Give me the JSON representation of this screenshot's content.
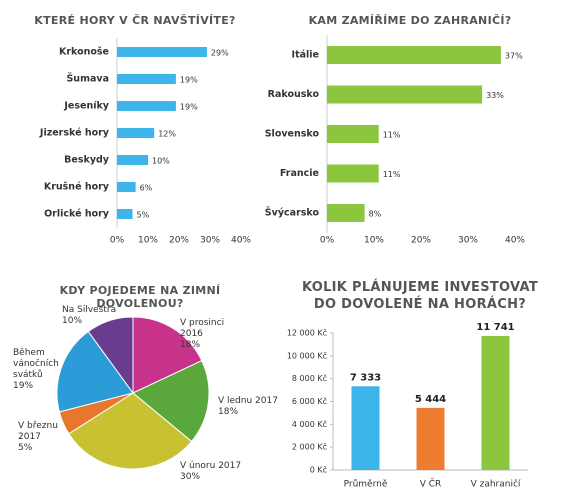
{
  "chart_data": [
    {
      "type": "hbar",
      "title": "KTERÉ HORY V ČR NAVŠTÍVÍTE?",
      "categories": [
        "Krkonoše",
        "Šumava",
        "Jeseníky",
        "Jizerské hory",
        "Beskydy",
        "Krušné hory",
        "Orlické hory"
      ],
      "values": [
        29,
        19,
        19,
        12,
        10,
        6,
        5
      ],
      "value_labels": [
        "29%",
        "19%",
        "19%",
        "12%",
        "10%",
        "6%",
        "5%"
      ],
      "color": "#3cb4ec",
      "xlim": [
        0,
        40
      ],
      "xticks": [
        {
          "value": 0,
          "label": "0%"
        },
        {
          "value": 10,
          "label": "10%"
        },
        {
          "value": 20,
          "label": "20%"
        },
        {
          "value": 30,
          "label": "30%"
        },
        {
          "value": 40,
          "label": "40%"
        }
      ]
    },
    {
      "type": "hbar",
      "title": "KAM ZAMÍŘÍME DO ZAHRANIČÍ?",
      "categories": [
        "Itálie",
        "Rakousko",
        "Slovensko",
        "Francie",
        "Švýcarsko"
      ],
      "values": [
        37,
        33,
        11,
        11,
        8
      ],
      "value_labels": [
        "37%",
        "33%",
        "11%",
        "11%",
        "8%"
      ],
      "color": "#8cc63f",
      "xlim": [
        0,
        40
      ],
      "xticks": [
        {
          "value": 0,
          "label": "0%"
        },
        {
          "value": 10,
          "label": "10%"
        },
        {
          "value": 20,
          "label": "20%"
        },
        {
          "value": 30,
          "label": "30%"
        },
        {
          "value": 40,
          "label": "40%"
        }
      ]
    },
    {
      "type": "pie",
      "title": "KDY POJEDEME NA ZIMNÍ DOVOLENOU?",
      "categories": [
        "V prosinci 2016",
        "V lednu 2017",
        "V únoru 2017",
        "V březnu 2017",
        "Během vánočních svátků",
        "Na Silvestra"
      ],
      "values": [
        18,
        18,
        30,
        5,
        19,
        10
      ],
      "value_labels": [
        "18%",
        "18%",
        "30%",
        "5%",
        "19%",
        "10%"
      ],
      "colors": [
        "#c7338b",
        "#5aa83c",
        "#c8c232",
        "#e8772e",
        "#2b9cd8",
        "#6a3c8e"
      ]
    },
    {
      "type": "bar",
      "title": "KOLIK PLÁNUJEME INVESTOVAT DO DOVOLENÉ NA HORÁCH?",
      "categories": [
        "Průměrně",
        "V ČR",
        "V zahraničí"
      ],
      "values": [
        7333,
        5444,
        11741
      ],
      "value_labels": [
        "7 333",
        "5 444",
        "11 741"
      ],
      "colors": [
        "#3cb4ec",
        "#ee7d31",
        "#8cc63f"
      ],
      "ylim": [
        0,
        12000
      ],
      "yticks": [
        {
          "value": 0,
          "label": "0 Kč"
        },
        {
          "value": 2000,
          "label": "2 000 Kč"
        },
        {
          "value": 4000,
          "label": "4 000 Kč"
        },
        {
          "value": 6000,
          "label": "6 000 Kč"
        },
        {
          "value": 8000,
          "label": "8 000 Kč"
        },
        {
          "value": 10000,
          "label": "10 000 Kč"
        },
        {
          "value": 12000,
          "label": "12 000 Kč"
        }
      ]
    }
  ]
}
